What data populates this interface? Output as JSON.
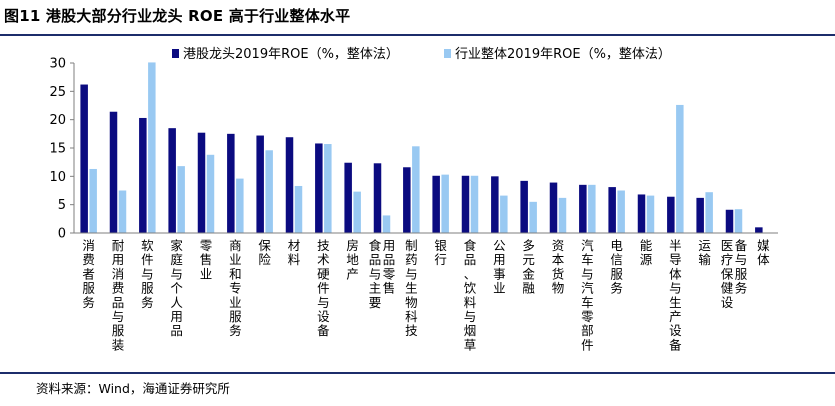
{
  "title": "图11 港股大部分行业龙头 ROE 高于行业整体水平",
  "source": "资料来源：Wind，海通证券研究所",
  "chart_data": {
    "type": "bar",
    "categories": [
      "消费者服务",
      "耐用消费品与服装",
      "软件与服务",
      "家庭与个人用品",
      "零售业",
      "商业和专业服务",
      "保险",
      "材料",
      "技术硬件与设备",
      "房地产",
      "食品与主要用品零售",
      "制药与生物科技",
      "银行",
      "食品、饮料与烟草",
      "公用事业",
      "多元金融",
      "资本货物",
      "汽车与汽车零部件",
      "电信服务",
      "能源",
      "半导体与生产设备",
      "运输",
      "医疗保健设备与服务",
      "媒体"
    ],
    "series": [
      {
        "name": "港股龙头2019年ROE（%，整体法）",
        "color": "#0b0b80",
        "values": [
          26.2,
          21.4,
          20.3,
          18.5,
          17.7,
          17.5,
          17.2,
          16.9,
          15.8,
          12.4,
          12.3,
          11.6,
          10.1,
          10.1,
          10.0,
          9.2,
          8.9,
          8.5,
          8.1,
          6.8,
          6.4,
          6.2,
          4.1,
          1.0
        ]
      },
      {
        "name": "行业整体2019年ROE（%，整体法）",
        "color": "#99c9f2",
        "values": [
          11.3,
          7.5,
          30.1,
          11.8,
          13.8,
          9.6,
          14.6,
          8.3,
          15.7,
          7.3,
          3.1,
          15.3,
          10.3,
          10.1,
          6.6,
          5.5,
          6.2,
          8.5,
          7.5,
          6.6,
          22.6,
          7.2,
          4.2,
          0
        ]
      }
    ],
    "ylim": [
      0,
      30
    ],
    "yticks": [
      0,
      5,
      10,
      15,
      20,
      25,
      30
    ],
    "grid": false,
    "legend": "top"
  }
}
